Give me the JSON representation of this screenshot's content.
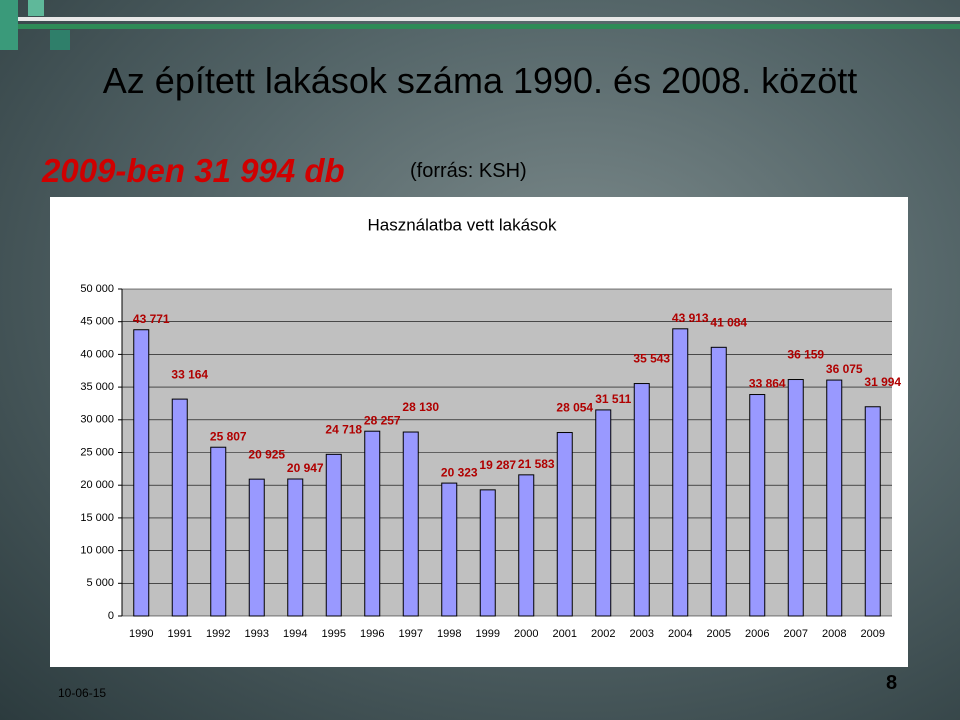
{
  "slide": {
    "title": "Az épített lakások száma 1990. és 2008. között",
    "highlight": "2009-ben 31 994 db",
    "source": "(forrás: KSH)",
    "date": "10-06-15",
    "page": "8"
  },
  "chart_data": {
    "type": "bar",
    "title": "Használatba vett lakások",
    "categories": [
      "1990",
      "1991",
      "1992",
      "1993",
      "1994",
      "1995",
      "1996",
      "1997",
      "1998",
      "1999",
      "2000",
      "2001",
      "2002",
      "2003",
      "2004",
      "2005",
      "2006",
      "2007",
      "2008",
      "2009"
    ],
    "values": [
      43771,
      33164,
      25807,
      20925,
      20947,
      24718,
      28257,
      28130,
      20323,
      19287,
      21583,
      28054,
      31511,
      35543,
      43913,
      41084,
      33864,
      36159,
      36075,
      31994
    ],
    "value_labels": [
      "43 771",
      "33 164",
      "25 807",
      "20 925",
      "20 947",
      "24 718",
      "28 257",
      "28 130",
      "20 323",
      "19 287",
      "21 583",
      "28 054",
      "31 511",
      "35 543",
      "43 913",
      "41 084",
      "33 864",
      "36 159",
      "36 075",
      "31 994"
    ],
    "color": "#9999ff",
    "ylim": [
      0,
      50000
    ],
    "yticks": [
      0,
      {
        "value": 5000,
        "label": "5 000"
      },
      {
        "value": 10000,
        "label": "10 000"
      },
      {
        "value": 15000,
        "label": "15 000"
      },
      {
        "value": 20000,
        "label": "20 000"
      },
      {
        "value": 25000,
        "label": "25 000"
      },
      {
        "value": 30000,
        "label": "30 000"
      },
      {
        "value": 35000,
        "label": "35 000"
      },
      {
        "value": 40000,
        "label": "40 000"
      },
      {
        "value": 45000,
        "label": "45 000"
      },
      {
        "value": 50000,
        "label": "50 000"
      }
    ],
    "grid": true
  }
}
